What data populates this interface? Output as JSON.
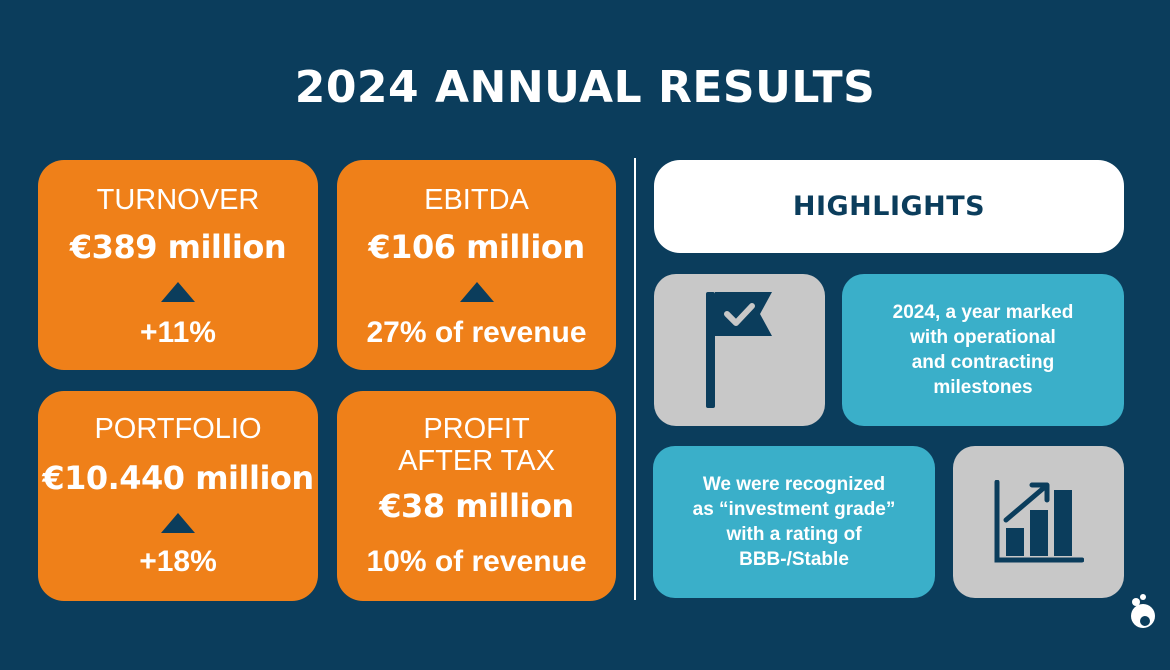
{
  "title": "2024 ANNUAL RESULTS",
  "colors": {
    "background": "#0b3d5c",
    "card_orange": "#ef8019",
    "teal": "#3aafc9",
    "grey": "#c8c8c8",
    "white": "#ffffff"
  },
  "metrics": [
    {
      "label": "TURNOVER",
      "value": "€389 million",
      "change": "+11%",
      "trend": "up"
    },
    {
      "label": "EBITDA",
      "value": "€106 million",
      "change": "27% of revenue",
      "trend": "up"
    },
    {
      "label": "PORTFOLIO",
      "value": "€10.440 million",
      "change": "+18%",
      "trend": "up"
    },
    {
      "label_line1": "PROFIT",
      "label_line2": "AFTER TAX",
      "value": "€38 million",
      "change": "10% of revenue"
    }
  ],
  "highlights": {
    "title": "HIGHLIGHTS",
    "items": [
      {
        "icon": "flag-check-icon",
        "lines": [
          "2024, a year marked",
          "with operational",
          "and contracting",
          "milestones"
        ]
      },
      {
        "icon": "growth-chart-icon",
        "lines": [
          "We were recognized",
          "as “investment grade”",
          "with a rating of",
          "BBB-/Stable"
        ]
      }
    ]
  },
  "logo": {
    "icon": "company-logo-icon"
  }
}
